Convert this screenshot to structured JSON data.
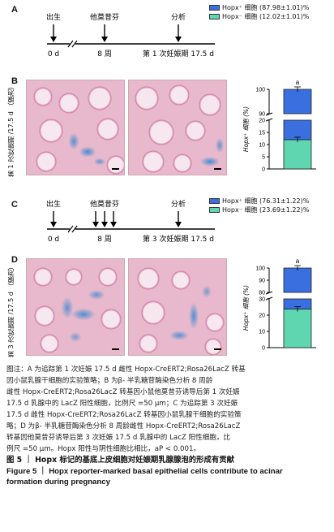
{
  "panels": {
    "A": {
      "label": "A",
      "legend": [
        {
          "text": "Hopx⁺ 细胞 (87.98±1.01)%",
          "color": "#3a6fe0"
        },
        {
          "text": "Hopx⁻ 细胞 (12.02±1.01)%",
          "color": "#5fd6b0"
        }
      ],
      "timeline": {
        "birth": "出生",
        "tamoxifen": "他莫昔芬",
        "analysis": "分析",
        "start": "0 d",
        "week": "8 周",
        "end": "第 1 次妊娠期 17.5 d"
      }
    },
    "B": {
      "label": "B",
      "side_label": "第 1 次妊娠期 /17.5 d （腺泡）"
    },
    "C": {
      "label": "C",
      "legend": [
        {
          "text": "Hopx⁺ 细胞 (76.31±1.22)%",
          "color": "#3a6fe0"
        },
        {
          "text": "Hopx⁻ 细胞 (23.69±1.22)%",
          "color": "#5fd6b0"
        }
      ],
      "timeline": {
        "birth": "出生",
        "tamoxifen": "他莫昔芬",
        "analysis": "分析",
        "start": "0 d",
        "week": "8 周",
        "end": "第 3 次妊娠期 17.5 d"
      }
    },
    "D": {
      "label": "D",
      "side_label": "第 3 次妊娠期 /17.5 d （腺泡）"
    }
  },
  "chart_data": [
    {
      "type": "bar",
      "categories": [
        ""
      ],
      "series": [
        {
          "name": "Hopx⁺ 细胞",
          "values": [
            87.98
          ]
        },
        {
          "name": "Hopx⁻ 细胞",
          "values": [
            12.02
          ]
        }
      ],
      "stacked": true,
      "ylabel": "Hopx⁺ 细胞 (%)",
      "ylim": [
        0,
        100
      ],
      "axis_break": [
        20,
        90
      ],
      "ticks": [
        "100",
        "90",
        "20",
        "15",
        "10",
        "5",
        "0"
      ],
      "annotation": "a"
    },
    {
      "type": "bar",
      "categories": [
        ""
      ],
      "series": [
        {
          "name": "Hopx⁺ 细胞",
          "values": [
            76.31
          ]
        },
        {
          "name": "Hopx⁻ 细胞",
          "values": [
            23.69
          ]
        }
      ],
      "stacked": true,
      "ylabel": "Hopx⁺ 细胞 (%)",
      "ylim": [
        0,
        100
      ],
      "axis_break": [
        30,
        80
      ],
      "ticks": [
        "100",
        "90",
        "80",
        "30",
        "20",
        "10",
        "0"
      ],
      "annotation": "a"
    }
  ],
  "caption": {
    "lines": [
      "图注：A 为追踪第 1 次妊娠 17.5 d 雌性 Hopx-CreERT2;Rosa26LacZ 转基",
      "因小鼠乳腺干细胞的实验策略；B 为β- 半乳糖苷酶染色分析 8 周龄",
      "雌性 Hopx-CreERT2;Rosa26LacZ 转基因小鼠他莫昔芬诱导后第 1 次妊娠",
      "17.5 d 乳腺中的 LacZ 阳性细胞，比例尺 =50 μm；C 为追踪第 3 次妊娠",
      "17.5 d 雌性 Hopx-CreERT2;Rosa26LacZ 转基因小鼠乳腺干细胞的实验策",
      "略；D 为β- 半乳糖苷酶染色分析 8 周龄雌性 Hopx-CreERT2;Rosa26LacZ",
      "转基因他莫昔芬诱导后第 3 次妊娠 17.5 d 乳腺中的 LacZ 阳性细胞，比",
      "例尺 =50 μm。Hopx 阳性与阴性细胞比相比，aP < 0.001。"
    ],
    "title_cn": "图 5 ｜ Hopx 标记的基底上皮细胞对妊娠期乳腺腺泡的形成有贡献",
    "title_en_1": "Figure 5 ｜ Hopx reporter-marked basal epithelial cells contribute to acinar",
    "title_en_2": "formation during pregnancy"
  }
}
